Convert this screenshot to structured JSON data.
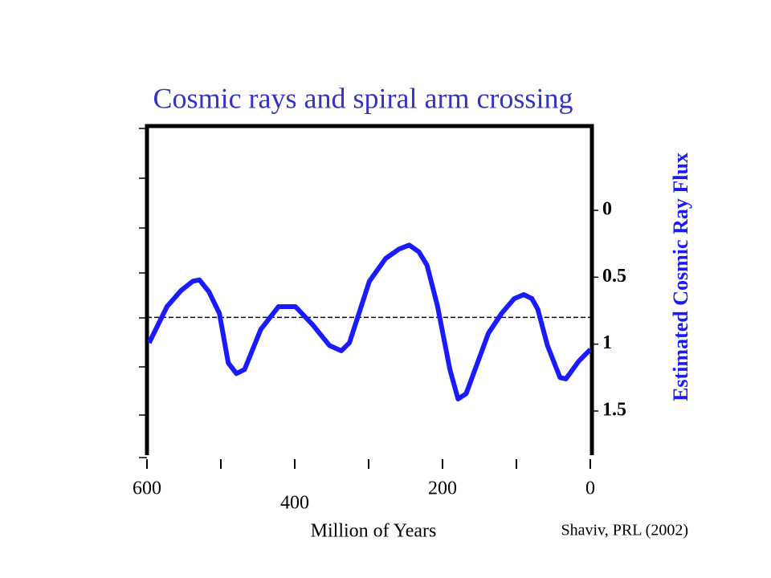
{
  "chart_data": {
    "type": "line",
    "title": "Cosmic rays and spiral arm crossing",
    "x_label": "Million of Years",
    "y_label": "Estimated  Cosmic  Ray Flux",
    "source": "Shaviv, PRL (2002)",
    "x": [
      597,
      573,
      554,
      538,
      529,
      516,
      502,
      490,
      479,
      468,
      446,
      422,
      399,
      375,
      353,
      337,
      326,
      299,
      277,
      259,
      245,
      232,
      221,
      207,
      190,
      179,
      168,
      138,
      120,
      103,
      90,
      79,
      71,
      58,
      41,
      33,
      16,
      0
    ],
    "series": [
      {
        "name": "Estimated Cosmic Ray Flux",
        "color": "#1a1aff",
        "values": [
          0.99,
          0.72,
          0.6,
          0.53,
          0.52,
          0.61,
          0.77,
          1.14,
          1.22,
          1.19,
          0.89,
          0.72,
          0.72,
          0.86,
          1.01,
          1.05,
          0.99,
          0.53,
          0.36,
          0.29,
          0.26,
          0.31,
          0.41,
          0.71,
          1.19,
          1.41,
          1.37,
          0.92,
          0.77,
          0.66,
          0.63,
          0.66,
          0.74,
          1.01,
          1.25,
          1.26,
          1.13,
          1.04
        ]
      }
    ],
    "xlim": [
      600,
      0
    ],
    "xticks": [
      600,
      400,
      200,
      0
    ],
    "ylim": [
      1.83,
      -0.63
    ],
    "yticks": [
      0,
      0.5,
      1,
      1.5
    ],
    "reference_line": 0.8,
    "title_color": "#3333cc"
  }
}
